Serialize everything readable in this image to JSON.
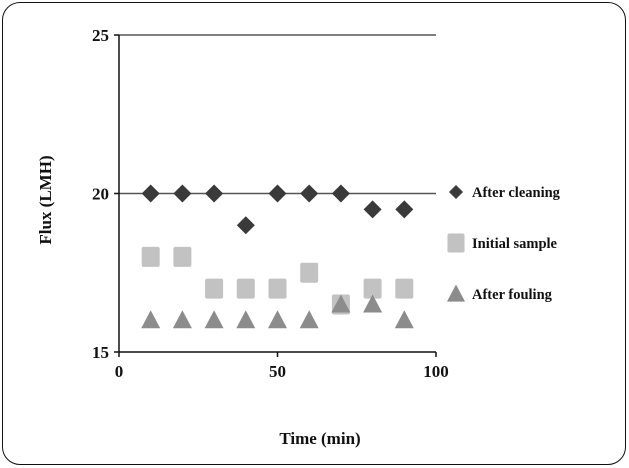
{
  "chart_data": {
    "type": "scatter",
    "xlabel": "Time (min)",
    "ylabel": "Flux (LMH)",
    "xlim": [
      0,
      100
    ],
    "ylim": [
      15,
      25
    ],
    "x_ticks": [
      0,
      50,
      100
    ],
    "y_ticks": [
      15,
      20,
      25
    ],
    "gridlines_y": [
      20,
      25
    ],
    "legend_position": "right",
    "series": [
      {
        "name": "After cleaning",
        "marker": "diamond",
        "color": "#3a3a3a",
        "x": [
          10,
          20,
          30,
          40,
          50,
          60,
          70,
          80,
          90
        ],
        "y": [
          20,
          20,
          20,
          19,
          20,
          20,
          20,
          19.5,
          19.5
        ]
      },
      {
        "name": "Initial sample",
        "marker": "square",
        "color": "#c2c2c2",
        "x": [
          10,
          20,
          30,
          40,
          50,
          60,
          70,
          80,
          90
        ],
        "y": [
          18,
          18,
          17,
          17,
          17,
          17.5,
          16.5,
          17,
          17
        ]
      },
      {
        "name": "After fouling",
        "marker": "triangle",
        "color": "#8c8c8c",
        "x": [
          10,
          20,
          30,
          40,
          50,
          60,
          70,
          80,
          90
        ],
        "y": [
          16,
          16,
          16,
          16,
          16,
          16,
          16.5,
          16.5,
          16
        ]
      }
    ]
  }
}
